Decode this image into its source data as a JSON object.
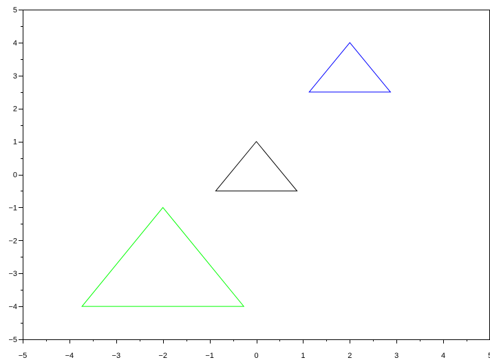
{
  "chart_data": {
    "type": "line",
    "title": "",
    "xlabel": "",
    "ylabel": "",
    "xlim": [
      -5,
      5
    ],
    "ylim": [
      -5,
      5
    ],
    "grid": false,
    "legend": "none",
    "x_ticks": [
      "−5",
      "−4",
      "−3",
      "−2",
      "−1",
      "0",
      "1",
      "2",
      "3",
      "4",
      "5"
    ],
    "y_ticks": [
      "−5",
      "−4",
      "−3",
      "−2",
      "−1",
      "0",
      "1",
      "2",
      "3",
      "4",
      "5"
    ],
    "series": [
      {
        "color": "#0000ff",
        "closed": true,
        "x": [
          1.13,
          2.0,
          2.87
        ],
        "y": [
          2.5,
          4.0,
          2.5
        ]
      },
      {
        "color": "#000000",
        "closed": true,
        "x": [
          -0.87,
          0.0,
          0.87
        ],
        "y": [
          -0.5,
          1.0,
          -0.5
        ]
      },
      {
        "color": "#00ff00",
        "closed": true,
        "x": [
          -3.73,
          -2.0,
          -0.27
        ],
        "y": [
          -4.0,
          -1.0,
          -4.0
        ]
      }
    ]
  }
}
